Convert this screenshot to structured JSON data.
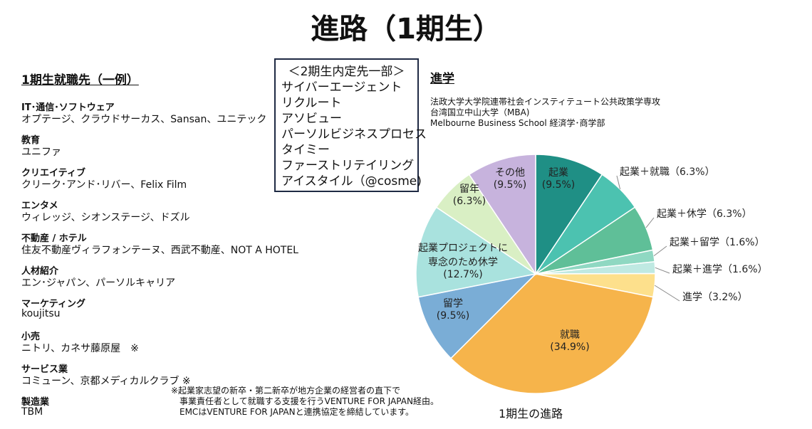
{
  "title": "進路（1期生）",
  "employment": {
    "heading": "1期生就職先（一例）",
    "sections": [
      {
        "label": "IT･通信･ソフトウェア",
        "items": "オプテージ、クラウドサーカス、Sansan、ユニテック"
      },
      {
        "label": "教育",
        "items": "ユニファ"
      },
      {
        "label": "クリエイティブ",
        "items": "クリーク･アンド･リバー、Felix Film"
      },
      {
        "label": "エンタメ",
        "items": "ウィレッジ、シオンステージ、ドズル"
      },
      {
        "label": "不動産 / ホテル",
        "items": "住友不動産ヴィラフォンテーヌ、西武不動産、NOT A HOTEL"
      },
      {
        "label": "人材紹介",
        "items": "エン･ジャパン、パーソルキャリア"
      },
      {
        "label": "マーケティング",
        "items": "koujitsu"
      },
      {
        "label": "小売",
        "items": "ニトリ、カネサ藤原屋　※"
      },
      {
        "label": "サービス業",
        "items": "コミューン、京都メディカルクラブ ※"
      },
      {
        "label": "製造業",
        "items": "TBM"
      }
    ]
  },
  "offers": {
    "heading": "＜2期生内定先一部＞",
    "items": [
      "サイバーエージェント",
      "リクルート",
      "アソビュー",
      "パーソルビジネスプロセス",
      "タイミー",
      "ファーストリテイリング",
      "アイスタイル（@cosme)"
    ]
  },
  "further_study": {
    "heading": "進学",
    "items": [
      "法政大学大学院連帯社会インスティテュート公共政策学専攻",
      "台湾国立中山大学（MBA)",
      "Melbourne Business School 経済学･商学部"
    ]
  },
  "footnote": [
    "※起業家志望の新卒・第二新卒が地方企業の経営者の直下で",
    "事業責任者として就職する支援を行うVENTURE FOR JAPAN経由。",
    "EMCはVENTURE FOR JAPANと連携協定を締結しています。"
  ],
  "chart_data": {
    "type": "pie",
    "title": "1期生の進路",
    "categories": [
      "起業",
      "起業＋就職",
      "起業＋休学",
      "起業＋留学",
      "起業＋進学",
      "進学",
      "就職",
      "留学",
      "起業プロジェクトに専念のため休学",
      "留年",
      "その他"
    ],
    "values": [
      9.5,
      6.3,
      6.3,
      1.6,
      1.6,
      3.2,
      34.9,
      9.5,
      12.7,
      6.3,
      9.5
    ],
    "value_labels": [
      "(9.5%)",
      "（6.3%）",
      "（6.3%）",
      "（1.6%）",
      "（1.6%）",
      "（3.2%）",
      "(34.9%)",
      "(9.5%)",
      "(12.7%)",
      "(6.3%)",
      "(9.5%)"
    ],
    "colors": [
      "#1f8f85",
      "#4cc2b0",
      "#5fbf98",
      "#8fd8c2",
      "#bfe9e2",
      "#fde08c",
      "#f6b44b",
      "#7aadd6",
      "#a9e2de",
      "#d9efc4",
      "#c7b3dd"
    ]
  }
}
